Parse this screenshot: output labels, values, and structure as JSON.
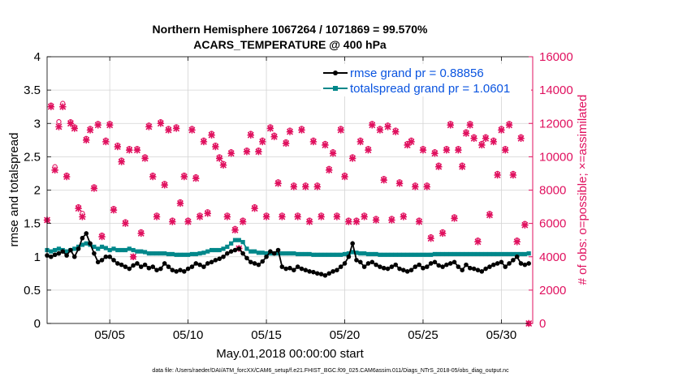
{
  "chart_data": {
    "type": "line",
    "title": "Northern Hemisphere 1067264 / 1071869 = 99.570%",
    "subtitle": "ACARS_TEMPERATURE @ 400 hPa",
    "xlabel": "May.01,2018 00:00:00 start",
    "ylabel": "rmse and totalspread",
    "y2label": "# of obs: o=possible; ×=assimilated",
    "footnote": "data file: /Users/raeder/DAI/ATM_forcXX/CAM6_setup/f.e21.FHIST_BGC.f09_025.CAM6assim.011/Diags_NTrS_2018-05/obs_diag_output.nc",
    "xlim": [
      1,
      32
    ],
    "ylim": [
      0,
      4
    ],
    "y2lim": [
      0,
      16000
    ],
    "xticks": [
      5,
      10,
      15,
      20,
      25,
      30
    ],
    "xtick_labels": [
      "05/05",
      "05/10",
      "05/15",
      "05/20",
      "05/25",
      "05/30"
    ],
    "yticks": [
      0,
      0.5,
      1,
      1.5,
      2,
      2.5,
      3,
      3.5,
      4
    ],
    "ytick_labels": [
      "0",
      "0.5",
      "1",
      "1.5",
      "2",
      "2.5",
      "3",
      "3.5",
      "4"
    ],
    "y2ticks": [
      0,
      2000,
      4000,
      6000,
      8000,
      10000,
      12000,
      14000,
      16000
    ],
    "y2tick_labels": [
      "0",
      "2000",
      "4000",
      "6000",
      "8000",
      "10000",
      "12000",
      "14000",
      "16000"
    ],
    "grid": true,
    "legend_position": "top-right",
    "colors": {
      "rmse": "#000000",
      "spread": "#00878a",
      "counts": "#e0115f",
      "legend_text": "#0a54e0"
    },
    "series": [
      {
        "name": "rmse grand pr = 0.88856",
        "axis": "left",
        "x": [
          1.0,
          1.25,
          1.5,
          1.75,
          2.0,
          2.25,
          2.5,
          2.75,
          3.0,
          3.25,
          3.5,
          3.75,
          4.0,
          4.25,
          4.5,
          4.75,
          5.0,
          5.25,
          5.5,
          5.75,
          6.0,
          6.25,
          6.5,
          6.75,
          7.0,
          7.25,
          7.5,
          7.75,
          8.0,
          8.25,
          8.5,
          8.75,
          9.0,
          9.25,
          9.5,
          9.75,
          10.0,
          10.25,
          10.5,
          10.75,
          11.0,
          11.25,
          11.5,
          11.75,
          12.0,
          12.25,
          12.5,
          12.75,
          13.0,
          13.25,
          13.5,
          13.75,
          14.0,
          14.25,
          14.5,
          14.75,
          15.0,
          15.25,
          15.5,
          15.75,
          16.0,
          16.25,
          16.5,
          16.75,
          17.0,
          17.25,
          17.5,
          17.75,
          18.0,
          18.25,
          18.5,
          18.75,
          19.0,
          19.25,
          19.5,
          19.75,
          20.0,
          20.25,
          20.5,
          20.75,
          21.0,
          21.25,
          21.5,
          21.75,
          22.0,
          22.25,
          22.5,
          22.75,
          23.0,
          23.25,
          23.5,
          23.75,
          24.0,
          24.25,
          24.5,
          24.75,
          25.0,
          25.25,
          25.5,
          25.75,
          26.0,
          26.25,
          26.5,
          26.75,
          27.0,
          27.25,
          27.5,
          27.75,
          28.0,
          28.25,
          28.5,
          28.75,
          29.0,
          29.25,
          29.5,
          29.75,
          30.0,
          30.25,
          30.5,
          30.75,
          31.0,
          31.25,
          31.5,
          31.75
        ],
        "values": [
          1.02,
          1.0,
          1.03,
          1.05,
          1.08,
          1.02,
          1.1,
          1.0,
          1.12,
          1.28,
          1.35,
          1.2,
          1.05,
          0.92,
          0.95,
          1.0,
          1.0,
          0.95,
          0.9,
          0.88,
          0.85,
          0.82,
          0.87,
          0.9,
          0.85,
          0.88,
          0.83,
          0.85,
          0.8,
          0.82,
          0.9,
          0.85,
          0.8,
          0.78,
          0.8,
          0.78,
          0.82,
          0.85,
          0.9,
          0.88,
          0.85,
          0.9,
          0.92,
          0.95,
          0.97,
          1.0,
          1.05,
          1.08,
          1.1,
          1.12,
          1.05,
          0.98,
          0.92,
          0.9,
          0.88,
          0.93,
          1.0,
          1.08,
          1.05,
          1.1,
          0.85,
          0.82,
          0.83,
          0.8,
          0.85,
          0.82,
          0.8,
          0.78,
          0.77,
          0.75,
          0.74,
          0.72,
          0.75,
          0.78,
          0.8,
          0.85,
          0.9,
          1.0,
          1.2,
          0.95,
          0.92,
          0.85,
          0.9,
          0.92,
          0.88,
          0.85,
          0.83,
          0.82,
          0.85,
          0.88,
          0.82,
          0.8,
          0.78,
          0.8,
          0.85,
          0.88,
          0.83,
          0.85,
          0.9,
          0.92,
          0.87,
          0.85,
          0.88,
          0.9,
          0.92,
          0.85,
          0.8,
          0.88,
          0.83,
          0.82,
          0.8,
          0.78,
          0.82,
          0.85,
          0.88,
          0.9,
          0.92,
          0.85,
          0.9,
          0.95,
          1.0,
          0.9,
          0.88,
          0.9
        ]
      },
      {
        "name": "totalspread grand pr = 1.0601",
        "axis": "left",
        "x": [
          1.0,
          1.25,
          1.5,
          1.75,
          2.0,
          2.25,
          2.5,
          2.75,
          3.0,
          3.25,
          3.5,
          3.75,
          4.0,
          4.25,
          4.5,
          4.75,
          5.0,
          5.25,
          5.5,
          5.75,
          6.0,
          6.25,
          6.5,
          6.75,
          7.0,
          7.25,
          7.5,
          7.75,
          8.0,
          8.25,
          8.5,
          8.75,
          9.0,
          9.25,
          9.5,
          9.75,
          10.0,
          10.25,
          10.5,
          10.75,
          11.0,
          11.25,
          11.5,
          11.75,
          12.0,
          12.25,
          12.5,
          12.75,
          13.0,
          13.25,
          13.5,
          13.75,
          14.0,
          14.25,
          14.5,
          14.75,
          15.0,
          15.25,
          15.5,
          15.75,
          16.0,
          16.25,
          16.5,
          16.75,
          17.0,
          17.25,
          17.5,
          17.75,
          18.0,
          18.25,
          18.5,
          18.75,
          19.0,
          19.25,
          19.5,
          19.75,
          20.0,
          20.25,
          20.5,
          20.75,
          21.0,
          21.25,
          21.5,
          21.75,
          22.0,
          22.25,
          22.5,
          22.75,
          23.0,
          23.25,
          23.5,
          23.75,
          24.0,
          24.25,
          24.5,
          24.75,
          25.0,
          25.25,
          25.5,
          25.75,
          26.0,
          26.25,
          26.5,
          26.75,
          27.0,
          27.25,
          27.5,
          27.75,
          28.0,
          28.25,
          28.5,
          28.75,
          29.0,
          29.25,
          29.5,
          29.75,
          30.0,
          30.25,
          30.5,
          30.75,
          31.0,
          31.25,
          31.5,
          31.75
        ],
        "values": [
          1.1,
          1.08,
          1.1,
          1.12,
          1.1,
          1.08,
          1.1,
          1.12,
          1.15,
          1.18,
          1.2,
          1.18,
          1.15,
          1.12,
          1.15,
          1.13,
          1.1,
          1.12,
          1.1,
          1.1,
          1.1,
          1.12,
          1.1,
          1.08,
          1.08,
          1.07,
          1.05,
          1.05,
          1.05,
          1.05,
          1.05,
          1.04,
          1.04,
          1.03,
          1.03,
          1.03,
          1.03,
          1.04,
          1.04,
          1.05,
          1.06,
          1.08,
          1.1,
          1.1,
          1.1,
          1.12,
          1.15,
          1.2,
          1.25,
          1.25,
          1.22,
          1.12,
          1.08,
          1.08,
          1.06,
          1.06,
          1.05,
          1.05,
          1.05,
          1.05,
          1.05,
          1.05,
          1.05,
          1.05,
          1.04,
          1.04,
          1.04,
          1.04,
          1.03,
          1.03,
          1.03,
          1.03,
          1.03,
          1.03,
          1.03,
          1.03,
          1.04,
          1.05,
          1.07,
          1.06,
          1.05,
          1.05,
          1.04,
          1.04,
          1.04,
          1.03,
          1.03,
          1.03,
          1.03,
          1.03,
          1.03,
          1.03,
          1.03,
          1.03,
          1.03,
          1.03,
          1.03,
          1.03,
          1.03,
          1.04,
          1.04,
          1.04,
          1.04,
          1.04,
          1.04,
          1.04,
          1.04,
          1.04,
          1.04,
          1.04,
          1.04,
          1.04,
          1.04,
          1.04,
          1.04,
          1.04,
          1.04,
          1.04,
          1.04,
          1.04,
          1.04,
          1.04,
          1.04,
          1.05
        ]
      },
      {
        "name": "obs possible",
        "axis": "right",
        "marker": "o",
        "x": [
          1.0,
          1.25,
          1.5,
          1.75,
          2.0,
          2.25,
          2.5,
          2.75,
          3.0,
          3.25,
          3.5,
          3.75,
          4.0,
          4.25,
          4.5,
          4.75,
          5.0,
          5.25,
          5.5,
          5.75,
          6.0,
          6.25,
          6.5,
          6.75,
          7.0,
          7.25,
          7.5,
          7.75,
          8.0,
          8.25,
          8.5,
          8.75,
          9.0,
          9.25,
          9.5,
          9.75,
          10.0,
          10.25,
          10.5,
          10.75,
          11.0,
          11.25,
          11.5,
          11.75,
          12.0,
          12.25,
          12.5,
          12.75,
          13.0,
          13.25,
          13.5,
          13.75,
          14.0,
          14.25,
          14.5,
          14.75,
          15.0,
          15.25,
          15.5,
          15.75,
          16.0,
          16.25,
          16.5,
          16.75,
          17.0,
          17.25,
          17.5,
          17.75,
          18.0,
          18.25,
          18.5,
          18.75,
          19.0,
          19.25,
          19.5,
          19.75,
          20.0,
          20.25,
          20.5,
          20.75,
          21.0,
          21.25,
          21.5,
          21.75,
          22.0,
          22.25,
          22.5,
          22.75,
          23.0,
          23.25,
          23.5,
          23.75,
          24.0,
          24.25,
          24.5,
          24.75,
          25.0,
          25.25,
          25.5,
          25.75,
          26.0,
          26.25,
          26.5,
          26.75,
          27.0,
          27.25,
          27.5,
          27.75,
          28.0,
          28.25,
          28.5,
          28.75,
          29.0,
          29.25,
          29.5,
          29.75,
          30.0,
          30.25,
          30.5,
          30.75,
          31.0,
          31.25,
          31.5,
          31.75
        ],
        "values": [
          6200,
          13100,
          9400,
          12100,
          13200,
          8900,
          12100,
          11800,
          7000,
          6600,
          11100,
          11700,
          8200,
          12000,
          5300,
          11000,
          12000,
          6900,
          10700,
          9800,
          6100,
          10500,
          4000,
          10500,
          5500,
          10000,
          11900,
          8900,
          6500,
          12100,
          8400,
          11700,
          6200,
          11800,
          7300,
          8900,
          6200,
          11700,
          8800,
          6500,
          11000,
          6700,
          11400,
          10700,
          10000,
          9600,
          6500,
          10300,
          5700,
          4500,
          6200,
          10400,
          11400,
          7000,
          10400,
          11000,
          6500,
          11800,
          11300,
          8500,
          6500,
          10900,
          11600,
          8300,
          6500,
          11700,
          8300,
          6200,
          11000,
          8300,
          6500,
          10800,
          9300,
          10300,
          6500,
          11700,
          8900,
          6200,
          10000,
          6200,
          11000,
          6500,
          10500,
          12000,
          6300,
          11700,
          8700,
          11900,
          6300,
          11600,
          8500,
          6500,
          10800,
          11000,
          8300,
          6200,
          10500,
          8300,
          5200,
          10300,
          9500,
          5500,
          10500,
          12000,
          6400,
          10500,
          9500,
          11500,
          12000,
          11200,
          5000,
          10800,
          11200,
          6600,
          11000,
          9000,
          11700,
          10500,
          12000,
          9000,
          5000,
          11200,
          6000,
          0
        ]
      },
      {
        "name": "obs assimilated",
        "axis": "right",
        "marker": "x",
        "x": [
          1.0,
          1.25,
          1.5,
          1.75,
          2.0,
          2.25,
          2.5,
          2.75,
          3.0,
          3.25,
          3.5,
          3.75,
          4.0,
          4.25,
          4.5,
          4.75,
          5.0,
          5.25,
          5.5,
          5.75,
          6.0,
          6.25,
          6.5,
          6.75,
          7.0,
          7.25,
          7.5,
          7.75,
          8.0,
          8.25,
          8.5,
          8.75,
          9.0,
          9.25,
          9.5,
          9.75,
          10.0,
          10.25,
          10.5,
          10.75,
          11.0,
          11.25,
          11.5,
          11.75,
          12.0,
          12.25,
          12.5,
          12.75,
          13.0,
          13.25,
          13.5,
          13.75,
          14.0,
          14.25,
          14.5,
          14.75,
          15.0,
          15.25,
          15.5,
          15.75,
          16.0,
          16.25,
          16.5,
          16.75,
          17.0,
          17.25,
          17.5,
          17.75,
          18.0,
          18.25,
          18.5,
          18.75,
          19.0,
          19.25,
          19.5,
          19.75,
          20.0,
          20.25,
          20.5,
          20.75,
          21.0,
          21.25,
          21.5,
          21.75,
          22.0,
          22.25,
          22.5,
          22.75,
          23.0,
          23.25,
          23.5,
          23.75,
          24.0,
          24.25,
          24.5,
          24.75,
          25.0,
          25.25,
          25.5,
          25.75,
          26.0,
          26.25,
          26.5,
          26.75,
          27.0,
          27.25,
          27.5,
          27.75,
          28.0,
          28.25,
          28.5,
          28.75,
          29.0,
          29.25,
          29.5,
          29.75,
          30.0,
          30.25,
          30.5,
          30.75,
          31.0,
          31.25,
          31.5,
          31.75
        ],
        "values": [
          6200,
          13000,
          9200,
          11800,
          13000,
          8800,
          12000,
          11700,
          6900,
          6400,
          11000,
          11600,
          8100,
          11900,
          5200,
          10900,
          11900,
          6800,
          10600,
          9700,
          6000,
          10400,
          4000,
          10400,
          5400,
          9900,
          11800,
          8800,
          6400,
          12000,
          8300,
          11600,
          6100,
          11700,
          7200,
          8800,
          6100,
          11600,
          8700,
          6400,
          10900,
          6600,
          11300,
          10600,
          9900,
          9500,
          6400,
          10200,
          5600,
          4500,
          6100,
          10300,
          11300,
          6900,
          10300,
          10900,
          6400,
          11700,
          11200,
          8400,
          6400,
          10800,
          11500,
          8200,
          6400,
          11600,
          8200,
          6100,
          10900,
          8200,
          6400,
          10700,
          9200,
          10200,
          6400,
          11600,
          8800,
          6100,
          9900,
          6100,
          10900,
          6400,
          10400,
          11900,
          6200,
          11600,
          8600,
          11800,
          6200,
          11500,
          8400,
          6400,
          10700,
          10900,
          8200,
          6100,
          10400,
          8200,
          5100,
          10200,
          9400,
          5400,
          10400,
          11900,
          6300,
          10400,
          9400,
          11400,
          11900,
          11100,
          4900,
          10700,
          11100,
          6500,
          10900,
          8900,
          11600,
          10400,
          11900,
          8900,
          4900,
          11100,
          5900,
          0
        ]
      }
    ]
  }
}
